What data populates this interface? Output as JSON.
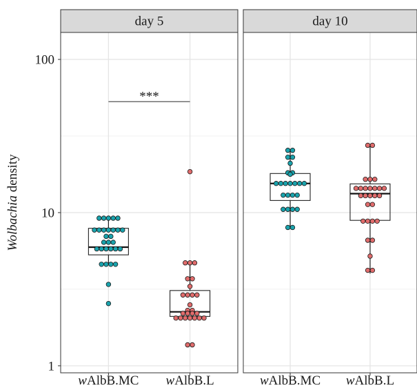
{
  "chart_data": {
    "type": "box",
    "ylabel": {
      "italic": "Wolbachia",
      "rest": " density"
    },
    "y_scale": "log10",
    "ylim": [
      0.9,
      150
    ],
    "y_ticks": [
      1,
      10,
      100
    ],
    "y_tick_labels": [
      "1",
      "10",
      "100"
    ],
    "grid": true,
    "categories": [
      {
        "prefix": "w",
        "rest": "AlbB.MC"
      },
      {
        "prefix": "w",
        "rest": "AlbB.L"
      }
    ],
    "colors": {
      "wAlbB.MC": "#1aa3ad",
      "wAlbB.L": "#e06c6c"
    },
    "panels": [
      {
        "strip": "day 5",
        "annotation": {
          "text": "***",
          "y": 53
        },
        "groups": [
          {
            "name": "wAlbB.MC",
            "box": {
              "q1": 5.3,
              "median": 5.95,
              "q3": 7.9,
              "whisker_low": 4.55,
              "whisker_high": 9.2
            },
            "points": [
              9.2,
              9.2,
              9.2,
              9.2,
              9.2,
              7.7,
              7.7,
              7.7,
              7.7,
              7.7,
              7.7,
              7.7,
              7.0,
              7.0,
              6.4,
              6.4,
              6.4,
              5.8,
              5.8,
              5.8,
              5.8,
              5.8,
              5.8,
              4.6,
              4.6,
              4.6,
              4.6,
              3.4,
              2.55
            ]
          },
          {
            "name": "wAlbB.L",
            "box": {
              "q1": 2.1,
              "median": 2.25,
              "q3": 3.1,
              "whisker_low": 2.05,
              "whisker_high": 4.7
            },
            "points": [
              18.5,
              4.7,
              4.7,
              4.7,
              3.7,
              3.7,
              3.3,
              2.9,
              2.9,
              2.9,
              2.9,
              2.5,
              2.3,
              2.3,
              2.2,
              2.2,
              2.2,
              2.2,
              2.05,
              2.05,
              2.05,
              2.05,
              2.05,
              2.05,
              2.05,
              1.37,
              1.37
            ]
          }
        ]
      },
      {
        "strip": "day 10",
        "annotation": null,
        "groups": [
          {
            "name": "wAlbB.MC",
            "box": {
              "q1": 12.0,
              "median": 15.5,
              "q3": 18.0,
              "whisker_low": 8.0,
              "whisker_high": 25.5
            },
            "points": [
              25.5,
              25.5,
              23.0,
              23.0,
              21.0,
              18.2,
              18.2,
              17.8,
              15.5,
              15.5,
              15.5,
              15.5,
              15.5,
              15.5,
              15.5,
              13.0,
              13.0,
              13.0,
              13.0,
              10.5,
              10.5,
              10.5,
              10.5,
              8.0,
              8.0
            ]
          },
          {
            "name": "wAlbB.L",
            "box": {
              "q1": 8.9,
              "median": 13.3,
              "q3": 15.4,
              "whisker_low": 4.0,
              "whisker_high": 27.5
            },
            "points": [
              27.5,
              27.5,
              16.5,
              16.5,
              16.5,
              14.4,
              14.4,
              14.4,
              14.4,
              14.4,
              14.4,
              14.4,
              12.9,
              12.9,
              12.9,
              12.9,
              12.9,
              11.3,
              11.3,
              8.8,
              8.8,
              8.8,
              8.8,
              6.6,
              6.6,
              5.2,
              4.2,
              4.2
            ]
          }
        ]
      }
    ]
  }
}
